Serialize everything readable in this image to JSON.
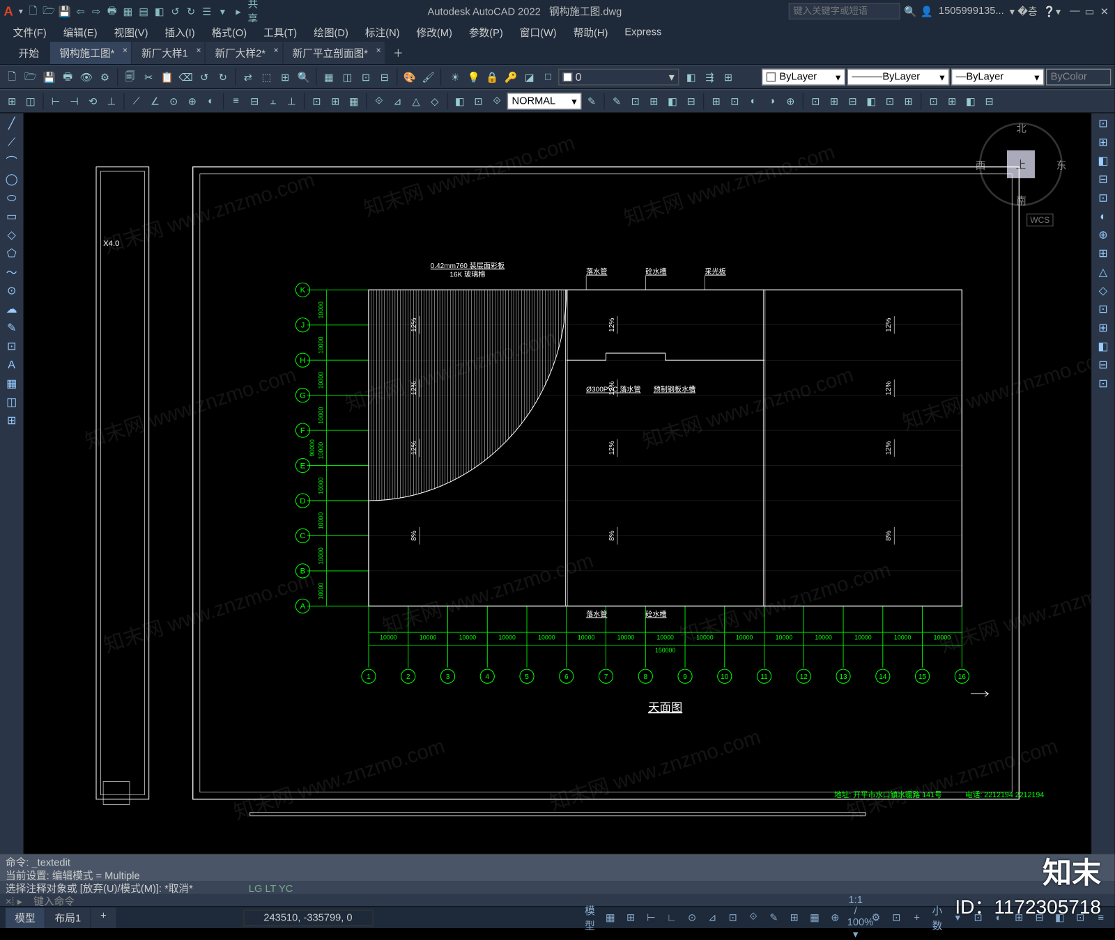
{
  "app": {
    "title_prefix": "Autodesk AutoCAD 2022",
    "title_doc": "钢构施工图.dwg",
    "search_placeholder": "键入关键字或短语",
    "user": "1505999135...",
    "logo": "A"
  },
  "menus": [
    "文件(F)",
    "编辑(E)",
    "视图(V)",
    "插入(I)",
    "格式(O)",
    "工具(T)",
    "绘图(D)",
    "标注(N)",
    "修改(M)",
    "参数(P)",
    "窗口(W)",
    "帮助(H)",
    "Express"
  ],
  "qat_icons": [
    "🗋",
    "🗁",
    "💾",
    "⇦",
    "⇨",
    "🖶",
    "▦",
    "▤",
    "◧",
    "↺",
    "↻",
    "☰",
    "▾",
    "▸",
    "共享"
  ],
  "start_tab": "开始",
  "file_tabs": [
    {
      "label": "钢构施工图*",
      "active": true
    },
    {
      "label": "新厂大样1",
      "active": false
    },
    {
      "label": "新厂大样2*",
      "active": false
    },
    {
      "label": "新厂平立剖面图*",
      "active": false
    }
  ],
  "toolbar1_icons_left": [
    "🗋",
    "🗁",
    "💾",
    "🖶",
    "👁",
    "⚙",
    "|",
    "🗐",
    "✂",
    "📋",
    "⌫",
    "↺",
    "↻",
    "|",
    "⇄",
    "⬚",
    "⊞",
    "🔍",
    "|",
    "▦",
    "◫",
    "⊡",
    "⊟",
    "|",
    "🎨",
    "🖌"
  ],
  "toolbar1_layer_dropdown": "0",
  "toolbar1_layer_icons": [
    "☀",
    "💡",
    "🔒",
    "🔑",
    "◪",
    "□"
  ],
  "toolbar1_right_icons": [
    "◧",
    "⇶",
    "⊞"
  ],
  "prop_layer": "ByLayer",
  "prop_ltype": "ByLayer",
  "prop_lweight": "ByLayer",
  "prop_color": "ByColor",
  "toolbar2_icons": [
    "⊞",
    "◫",
    "|",
    "⊢",
    "⊣",
    "⟲",
    "⊥",
    "|",
    "⟋",
    "∠",
    "⊙",
    "⊕",
    "◐",
    "|",
    "≡",
    "⊟",
    "⫠",
    "⊥",
    "|",
    "⊡",
    "⊞",
    "▦",
    "|",
    "⟐",
    "⊿",
    "△",
    "◇",
    "|",
    "◧",
    "⊡",
    "⟐"
  ],
  "toolbar2_style_dropdown": "NORMAL",
  "toolbar2_right_icons": [
    "✎",
    "⊡",
    "⊞",
    "◧",
    "⊟",
    "|",
    "⊞",
    "⊡",
    "◐",
    "◑",
    "⊕",
    "|",
    "⊡",
    "⊞",
    "⊟",
    "◧",
    "⊡",
    "⊞",
    "|",
    "⊡",
    "⊞",
    "◧",
    "⊟"
  ],
  "left_tools": [
    "╱",
    "⟋",
    "⌒",
    "◯",
    "⬭",
    "▭",
    "◇",
    "⬠",
    "～",
    "⊙",
    "☁",
    "✎",
    "⊡",
    "A",
    "▦",
    "◫",
    "⊞"
  ],
  "right_tools": [
    "⊡",
    "⊞",
    "◧",
    "⊟",
    "⊡",
    "◐",
    "⊕",
    "⊞",
    "△",
    "◇",
    "⊡",
    "⊞",
    "◧",
    "⊟",
    "⊡"
  ],
  "viewcube": {
    "top": "上",
    "n": "北",
    "s": "南",
    "e": "东",
    "w": "西",
    "wcs": "WCS"
  },
  "drawing": {
    "title": "天面图",
    "frame_color": "#ffffff",
    "grid_color": "#00ff00",
    "text_color": "#ffffff",
    "row_labels": [
      "A",
      "B",
      "C",
      "D",
      "E",
      "F",
      "G",
      "H",
      "J",
      "K"
    ],
    "col_labels": [
      "1",
      "2",
      "3",
      "4",
      "5",
      "6",
      "7",
      "8",
      "9",
      "10",
      "11",
      "12",
      "13",
      "14",
      "15",
      "16"
    ],
    "h_dim": "10000",
    "v_dim": "10000",
    "total_dim": "150000",
    "total_v": "90000",
    "annot_top1": "0.42mm760 装层面彩板",
    "annot_top2": "16K 玻璃棉",
    "annot_a": "落水管",
    "annot_b": "砼水槽",
    "annot_c": "采光板",
    "annot_d": "Ø300PVC 落水管",
    "annot_e": "预制钢板水槽",
    "annot_f": "落水管",
    "annot_g": "砼水槽",
    "slope1": "12%",
    "slope2": "8%",
    "left_txt": "X4.0",
    "footer_addr": "地址: 开平市水口镇水暖路 141号",
    "footer_tel": "电话: 2212194   2212194"
  },
  "cmd": {
    "line1": "命令: _textedit",
    "line2": "当前设置: 编辑模式 = Multiple",
    "line3": "选择注释对象或 [放弃(U)/模式(M)]: *取消*",
    "mids": "LG     LT    YC",
    "prompt": "键入命令"
  },
  "status": {
    "tabs": [
      "模型",
      "布局1"
    ],
    "coords": "243510, -335799, 0",
    "items": [
      "模型",
      "▦",
      "⊞",
      "⊢",
      "∟",
      "⊙",
      "⊿",
      "⊡",
      "⟐",
      "✎",
      "⊞",
      "▦",
      "⊕",
      "1:1 / 100% ▾",
      "⚙",
      "⊡",
      "+",
      "小数",
      "▾",
      "⊡",
      "◐",
      "⊞",
      "⊟",
      "◧",
      "⊡",
      "≡"
    ]
  },
  "watermark_text": "知末网 www.znzmo.com",
  "watermark_brand": "知末",
  "watermark_id": "ID：1172305718"
}
